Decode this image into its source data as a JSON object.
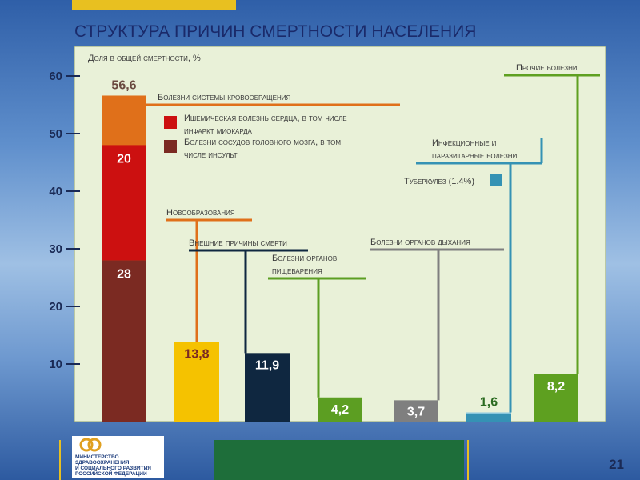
{
  "chart_data": {
    "type": "bar",
    "title": "СТРУКТУРА ПРИЧИН СМЕРТНОСТИ НАСЕЛЕНИЯ",
    "y_label": "Доля в общей смертности, %",
    "ylim": [
      0,
      65
    ],
    "yticks": [
      10,
      20,
      30,
      40,
      50,
      60
    ],
    "bars": [
      {
        "name_lines": [
          "Болезни системы кровообращения"
        ],
        "value": 56.6,
        "value_label": "56,6",
        "color": "#e0701a",
        "segments": [
          {
            "name_lines": [
              "Болезни сосудов головного мозга, в том",
              "числе инсульт"
            ],
            "value": 28,
            "color": "#7b2a22"
          },
          {
            "name_lines": [
              "Ишемическая болезнь сердца, в том числе",
              "инфаркт миокарда"
            ],
            "value": 20,
            "color": "#cc1010"
          }
        ]
      },
      {
        "name_lines": [
          "Новообразования"
        ],
        "value": 13.8,
        "value_label": "13,8",
        "color": "#f5c200"
      },
      {
        "name_lines": [
          "Внешние причины смерти"
        ],
        "value": 11.9,
        "value_label": "11,9",
        "color": "#0f2740"
      },
      {
        "name_lines": [
          "Болезни органов",
          "пищеварения"
        ],
        "value": 4.2,
        "value_label": "4,2",
        "color": "#5c9e22"
      },
      {
        "name_lines": [
          "Болезни органов дыхания"
        ],
        "value": 3.7,
        "value_label": "3,7",
        "color": "#7f7f7f"
      },
      {
        "name_lines": [
          "Инфекционные и",
          "паразитарные болезни"
        ],
        "value": 1.6,
        "value_label": "1,6",
        "color": "#8fcbe0",
        "segments": [
          {
            "name_lines": [
              "Туберкулез (1.4%)"
            ],
            "value": 1.4,
            "color": "#3592b4"
          }
        ]
      },
      {
        "name_lines": [
          "Прочие болезни"
        ],
        "value": 8.2,
        "value_label": "8,2",
        "color": "#5ea020"
      }
    ]
  },
  "footer": {
    "logo_lines": [
      "МИНИСТЕРСТВО",
      "ЗДРАВООХРАНЕНИЯ",
      "И СОЦИАЛЬНОГО РАЗВИТИЯ",
      "РОССИЙСКОЙ ФЕДЕРАЦИИ"
    ],
    "page_number": "21"
  }
}
